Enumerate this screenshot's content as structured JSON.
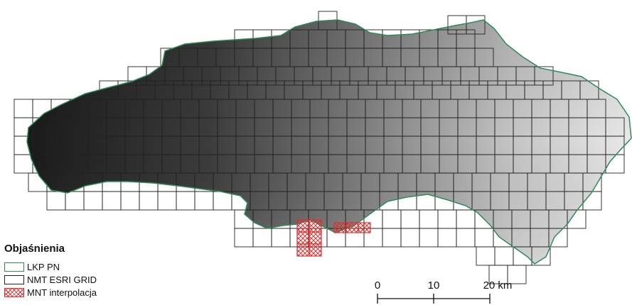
{
  "legend": {
    "title": "Objaśnienia",
    "items": [
      {
        "label": "LKP PN"
      },
      {
        "label": "NMT ESRI GRID"
      },
      {
        "label": "MNT interpolacja"
      }
    ]
  },
  "scale_bar": {
    "ticks": [
      "0",
      "10",
      "20 km"
    ]
  },
  "colors": {
    "boundary": "#2e8b57",
    "grid": "#222222",
    "interpolation": "#e03030"
  }
}
